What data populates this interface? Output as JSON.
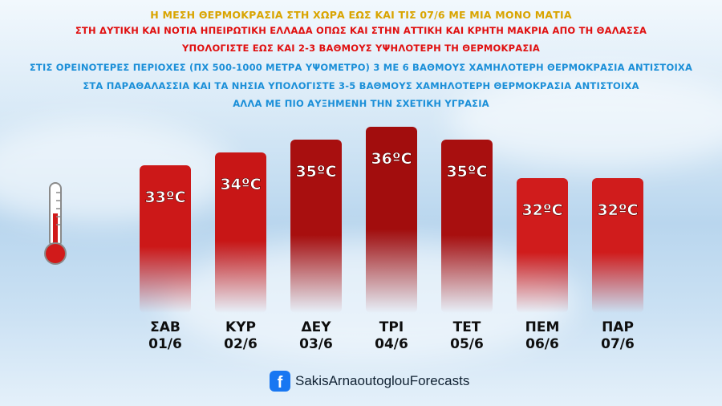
{
  "headlines": [
    "Η ΜΕΣΗ ΘΕΡΜΟΚΡΑΣΙΑ ΣΤΗ ΧΩΡΑ ΕΩΣ ΚΑΙ ΤΙΣ 07/6 ΜΕ ΜΙΑ ΜΟΝΟ ΜΑΤΙΑ",
    "ΣΤΗ ΔΥΤΙΚΗ ΚΑΙ ΝΟΤΙΑ ΗΠΕΙΡΩΤΙΚΗ ΕΛΛΑΔΑ ΟΠΩΣ ΚΑΙ ΣΤΗΝ ΑΤΤΙΚΗ ΚΑΙ ΚΡΗΤΗ ΜΑΚΡΙΑ ΑΠΟ ΤΗ ΘΑΛΑΣΣΑ",
    "ΥΠΟΛΟΓΙΣΤΕ ΕΩΣ ΚΑΙ 2-3 ΒΑΘΜΟΥΣ ΥΨΗΛΟΤΕΡΗ ΤΗ ΘΕΡΜΟΚΡΑΣΙΑ",
    "ΣΤΙΣ ΟΡΕΙΝΟΤΕΡΕΣ ΠΕΡΙΟΧΕΣ (ΠΧ 500-1000 ΜΕΤΡΑ ΥΨΟΜΕΤΡΟ) 3 ΜΕ 6 ΒΑΘΜΟΥΣ ΧΑΜΗΛΟΤΕΡΗ ΘΕΡΜΟΚΡΑΣΙΑ ΑΝΤΙΣΤΟΙΧΑ",
    "ΣΤΑ ΠΑΡΑΘΑΛΑΣΣΙΑ ΚΑΙ ΤΑ ΝΗΣΙΑ ΥΠΟΛΟΓΙΣΤΕ 3-5 ΒΑΘΜΟΥΣ ΧΑΜΗΛΟΤΕΡΗ ΘΕΡΜΟΚΡΑΣΙΑ ΑΝΤΙΣΤΟΙΧΑ",
    "ΑΛΛΑ ΜΕ ΠΙΟ ΑΥΞΗΜΕΝΗ ΤΗΝ ΣΧΕΤΙΚΗ ΥΓΡΑΣΙΑ"
  ],
  "chart_data": {
    "type": "bar",
    "categories": [
      {
        "day": "ΣΑΒ",
        "date": "01/6"
      },
      {
        "day": "ΚΥΡ",
        "date": "02/6"
      },
      {
        "day": "ΔΕΥ",
        "date": "03/6"
      },
      {
        "day": "ΤΡΙ",
        "date": "04/6"
      },
      {
        "day": "ΤΕΤ",
        "date": "05/6"
      },
      {
        "day": "ΠΕΜ",
        "date": "06/6"
      },
      {
        "day": "ΠΑΡ",
        "date": "07/6"
      }
    ],
    "values": [
      33,
      34,
      35,
      36,
      35,
      32,
      32
    ],
    "value_labels": [
      "33ºC",
      "34ºC",
      "35ºC",
      "36ºC",
      "35ºC",
      "32ºC",
      "32ºC"
    ],
    "unit": "ºC",
    "title": "",
    "xlabel": "",
    "ylabel": "",
    "ylim": [
      28,
      37
    ],
    "grid": false,
    "legend": "none",
    "bar_colors": [
      "#cc1818",
      "#c81616",
      "#a80f0f",
      "#a20d0d",
      "#a80f0f",
      "#d01c1c",
      "#d01c1c"
    ]
  },
  "footer": {
    "icon": "facebook-icon",
    "text": "SakisArnaoutoglouForecasts",
    "accent": "#1877f2"
  },
  "thermometer": {
    "icon": "thermometer-icon",
    "color": "#d11a1a"
  }
}
